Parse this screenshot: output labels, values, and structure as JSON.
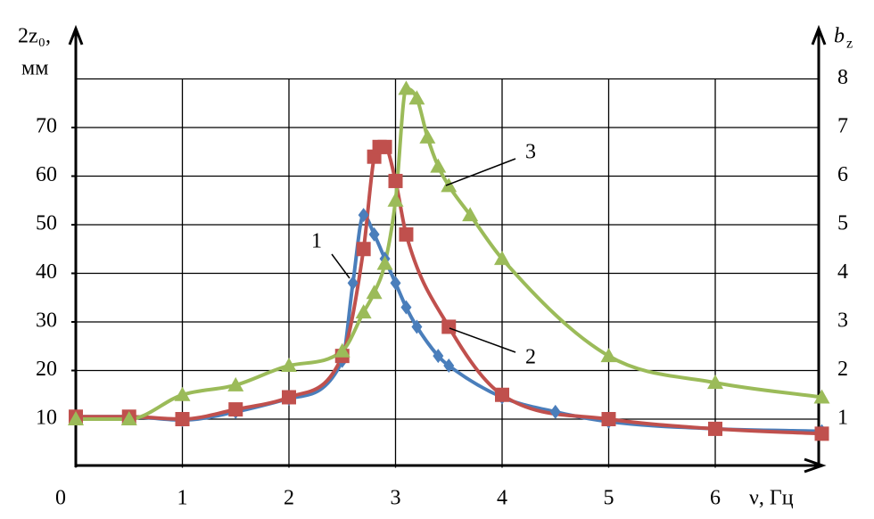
{
  "chart_data": {
    "type": "line",
    "y_label": "2z₀,",
    "y_unit": "мм",
    "y2_label": "b",
    "y2_label_sub": "z",
    "x_label": "ν, Гц",
    "xlim": [
      0,
      7
    ],
    "xticks": [
      0,
      1,
      2,
      3,
      4,
      5,
      6
    ],
    "ylim": [
      0,
      90
    ],
    "yticks": [
      10,
      20,
      30,
      40,
      50,
      60,
      70
    ],
    "y2lim": [
      0,
      9
    ],
    "y2ticks": [
      1,
      2,
      3,
      4,
      5,
      6,
      7,
      8
    ],
    "grid": true,
    "series": [
      {
        "name": "1",
        "color": "#4a7ebb",
        "marker": "diamond",
        "x": [
          0,
          0.5,
          1,
          1.5,
          2,
          2.5,
          2.6,
          2.7,
          2.8,
          2.9,
          3.0,
          3.1,
          3.2,
          3.4,
          3.5,
          4,
          4.5,
          5,
          6,
          7
        ],
        "values": [
          10.5,
          10.5,
          9.8,
          11.5,
          14.2,
          22,
          38,
          52,
          48,
          43,
          38,
          33,
          29,
          23,
          21,
          14.5,
          11.5,
          9.5,
          8,
          7.5
        ]
      },
      {
        "name": "2",
        "color": "#c0504d",
        "marker": "square",
        "x": [
          0,
          0.5,
          1,
          1.5,
          2,
          2.5,
          2.7,
          2.8,
          2.85,
          2.9,
          3.0,
          3.1,
          3.5,
          4,
          5,
          6,
          7
        ],
        "values": [
          10.5,
          10.5,
          10,
          12,
          14.5,
          23,
          45,
          64,
          66,
          66,
          59,
          48,
          29,
          15,
          10,
          8,
          7
        ]
      },
      {
        "name": "3",
        "color": "#9bbb59",
        "marker": "triangle",
        "axis": "y2",
        "x": [
          0,
          0.5,
          1,
          1.5,
          2,
          2.5,
          2.7,
          2.8,
          2.9,
          3.0,
          3.1,
          3.2,
          3.3,
          3.4,
          3.5,
          3.7,
          4,
          5,
          6,
          7
        ],
        "values": [
          1.0,
          1.0,
          1.5,
          1.7,
          2.1,
          2.4,
          3.2,
          3.6,
          4.2,
          5.5,
          7.8,
          7.6,
          6.8,
          6.2,
          5.8,
          5.2,
          4.3,
          2.3,
          1.75,
          1.45
        ]
      }
    ]
  }
}
